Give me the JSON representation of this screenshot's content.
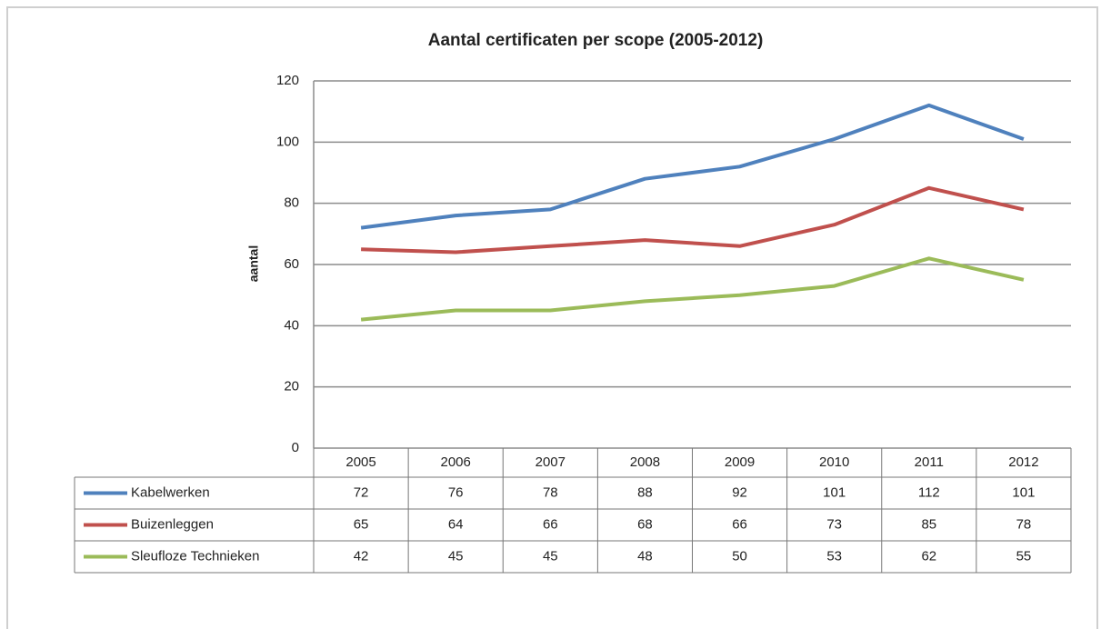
{
  "chart_data": {
    "type": "line",
    "title": "Aantal certificaten per scope (2005-2012)",
    "y_label": "aantal",
    "categories": [
      "2005",
      "2006",
      "2007",
      "2008",
      "2009",
      "2010",
      "2011",
      "2012"
    ],
    "series": [
      {
        "name": "Kabelwerken",
        "color": "#4f81bd",
        "values": [
          72,
          76,
          78,
          88,
          92,
          101,
          112,
          101
        ]
      },
      {
        "name": "Buizenleggen",
        "color": "#c0504d",
        "values": [
          65,
          64,
          66,
          68,
          66,
          73,
          85,
          78
        ]
      },
      {
        "name": "Sleufloze Technieken",
        "color": "#9bbb59",
        "values": [
          42,
          45,
          45,
          48,
          50,
          53,
          62,
          55
        ]
      }
    ],
    "ylim": [
      0,
      120
    ],
    "yticks": [
      0,
      20,
      40,
      60,
      80,
      100,
      120
    ],
    "grid": true,
    "data_table": true
  }
}
